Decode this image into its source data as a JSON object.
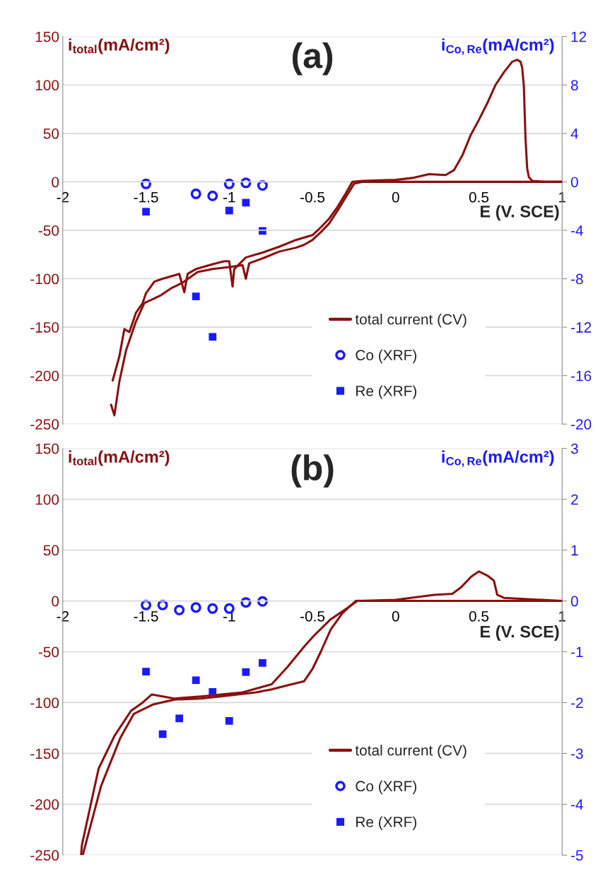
{
  "chart_data": [
    {
      "type": "line",
      "title": "(a)",
      "xlabel": "E (V. SCE)",
      "ylabel": "i$_{total}$(mA/cm²)",
      "y2label": "i$_{Co,Re}$(mA/cm²)",
      "xlim": [
        -2,
        1
      ],
      "xticks": [
        -2,
        -1.5,
        -1,
        -0.5,
        0,
        0.5,
        1
      ],
      "ylim": [
        -250,
        150
      ],
      "yticks": [
        -250,
        -200,
        -150,
        -100,
        -50,
        0,
        50,
        100,
        150
      ],
      "y2lim": [
        -20,
        12
      ],
      "y2ticks": [
        -20,
        -16,
        -12,
        -8,
        -4,
        0,
        4,
        8,
        12
      ],
      "grid": true,
      "legend": "bottom right",
      "series": [
        {
          "name": "total current (CV)",
          "color": "#8b0f0f",
          "marker": "none",
          "line_style": "solid",
          "x": [
            1,
            0.5,
            0,
            -0.2,
            -0.25,
            -0.3,
            -0.35,
            -0.4,
            -0.45,
            -0.5,
            -0.55,
            -0.6,
            -0.7,
            -0.8,
            -0.88,
            -0.9,
            -0.92,
            -1.0,
            -1.1,
            -1.19,
            -1.28,
            -1.35,
            -1.41,
            -1.47,
            -1.51,
            -1.56,
            -1.62,
            -1.66,
            -1.69,
            -1.71
          ],
          "values": [
            0,
            0,
            0,
            0,
            -2,
            -16,
            -30,
            -43,
            -52,
            -60,
            -65,
            -68,
            -72,
            -79,
            -84,
            -100,
            -86,
            -88,
            -90,
            -93,
            -104,
            -110,
            -117,
            -122,
            -125,
            -144,
            -174,
            -206,
            -241,
            -230
          ]
        },
        {
          "color": "#8b0f0f",
          "marker": "none",
          "line_style": "solid",
          "x": [
            -1.7,
            -1.66,
            -1.63,
            -1.6,
            -1.56,
            -1.52,
            -1.5,
            -1.45,
            -1.4,
            -1.3,
            -1.27,
            -1.25,
            -1.2,
            -1.1,
            -1.03,
            -1.0,
            -0.99,
            -0.98,
            -0.97,
            -0.9,
            -0.8,
            -0.7,
            -0.6,
            -0.5,
            -0.45,
            -0.4,
            -0.35,
            -0.3,
            -0.26,
            -0.2,
            0,
            0.1,
            0.2,
            0.3,
            0.35,
            0.4,
            0.45,
            0.5,
            0.55,
            0.6,
            0.65,
            0.7,
            0.73,
            0.75,
            0.76,
            0.77,
            0.78,
            0.79,
            0.8,
            0.82,
            0.9,
            1
          ],
          "values": [
            -205,
            -180,
            -152,
            -155,
            -135,
            -125,
            -115,
            -103,
            -100,
            -95,
            -114,
            -95,
            -90,
            -85,
            -82,
            -82,
            -95,
            -108,
            -90,
            -78,
            -73,
            -67,
            -60,
            -55,
            -47,
            -38,
            -26,
            -12,
            0,
            1,
            2,
            4,
            8,
            7,
            12,
            27,
            48,
            64,
            81,
            100,
            113,
            124,
            126,
            124,
            118,
            99,
            45,
            14,
            5,
            1,
            0,
            0
          ]
        },
        {
          "name": "Co (XRF)",
          "type": "scatter",
          "axis": "y2",
          "color": "#1a1aff",
          "marker": "circle",
          "x": [
            -1.5,
            -1.2,
            -1.1,
            -1.0,
            -0.9,
            -0.8
          ],
          "values": [
            -0.17,
            -0.99,
            -1.16,
            -0.17,
            -0.09,
            -0.3
          ]
        },
        {
          "name": "Re (XRF)",
          "type": "scatter",
          "axis": "y2",
          "color": "#1a1aff",
          "marker": "square",
          "x": [
            -1.5,
            -1.2,
            -1.1,
            -1.0,
            -0.9,
            -0.8
          ],
          "values": [
            -2.46,
            -9.46,
            -12.8,
            -2.37,
            -1.72,
            -4.05
          ]
        }
      ]
    },
    {
      "type": "line",
      "title": "(b)",
      "xlabel": "E (V. SCE)",
      "ylabel": "i$_{total}$(mA/cm²)",
      "y2label": "i$_{Co,Re}$(mA/cm²)",
      "xlim": [
        -2,
        1
      ],
      "xticks": [
        -2,
        -1.5,
        -1,
        -0.5,
        0,
        0.5,
        1
      ],
      "ylim": [
        -250,
        150
      ],
      "yticks": [
        -250,
        -200,
        -150,
        -100,
        -50,
        0,
        50,
        100,
        150
      ],
      "y2lim": [
        -5,
        3
      ],
      "y2ticks": [
        -5,
        -4,
        -3,
        -2,
        -1,
        0,
        1,
        2,
        3
      ],
      "grid": true,
      "legend": "bottom right",
      "series": [
        {
          "name": "total current (CV)",
          "color": "#8b0f0f",
          "marker": "none",
          "line_style": "solid",
          "x": [
            1,
            0.5,
            0,
            -0.23,
            -0.29,
            -0.39,
            -0.49,
            -0.55,
            -0.65,
            -0.745,
            -0.92,
            -1.17,
            -1.33,
            -1.465,
            -1.52,
            -1.59,
            -1.69,
            -1.785,
            -1.885,
            -1.89
          ],
          "values": [
            0,
            0,
            0,
            0,
            -7,
            -18,
            -34,
            -45,
            -65,
            -82,
            -90,
            -94,
            -96,
            -92,
            -100,
            -108,
            -133,
            -165,
            -240,
            -250
          ]
        },
        {
          "color": "#8b0f0f",
          "marker": "none",
          "line_style": "solid",
          "x": [
            -1.88,
            -1.77,
            -1.655,
            -1.573,
            -1.46,
            -1.33,
            -1.17,
            -1.005,
            -0.84,
            -0.745,
            -0.65,
            -0.55,
            -0.5,
            -0.45,
            -0.39,
            -0.32,
            -0.24,
            0,
            0.23,
            0.34,
            0.39,
            0.455,
            0.5,
            0.55,
            0.59,
            0.61,
            0.65,
            0.88,
            1
          ],
          "values": [
            -250,
            -182,
            -135,
            -111,
            -102,
            -97,
            -96,
            -93,
            -90,
            -87,
            -83,
            -79,
            -67,
            -50,
            -28,
            -12,
            0,
            1,
            6,
            7,
            13,
            24,
            29,
            25,
            20,
            6,
            3,
            1,
            0
          ]
        },
        {
          "name": "Co (XRF)",
          "type": "scatter",
          "axis": "y2",
          "color": "#1a1aff",
          "marker": "circle",
          "x": [
            -1.5,
            -1.4,
            -1.3,
            -1.2,
            -1.1,
            -1.0,
            -0.9,
            -0.8
          ],
          "values": [
            -0.08,
            -0.08,
            -0.18,
            -0.13,
            -0.15,
            -0.15,
            -0.03,
            -0.01
          ]
        },
        {
          "name": "Re (XRF)",
          "type": "scatter",
          "axis": "y2",
          "color": "#1a1aff",
          "marker": "square",
          "x": [
            -1.5,
            -1.4,
            -1.3,
            -1.2,
            -1.1,
            -1.0,
            -0.9,
            -0.8
          ],
          "values": [
            -1.39,
            -2.62,
            -2.31,
            -1.56,
            -1.79,
            -2.36,
            -1.4,
            -1.22
          ]
        }
      ]
    }
  ]
}
